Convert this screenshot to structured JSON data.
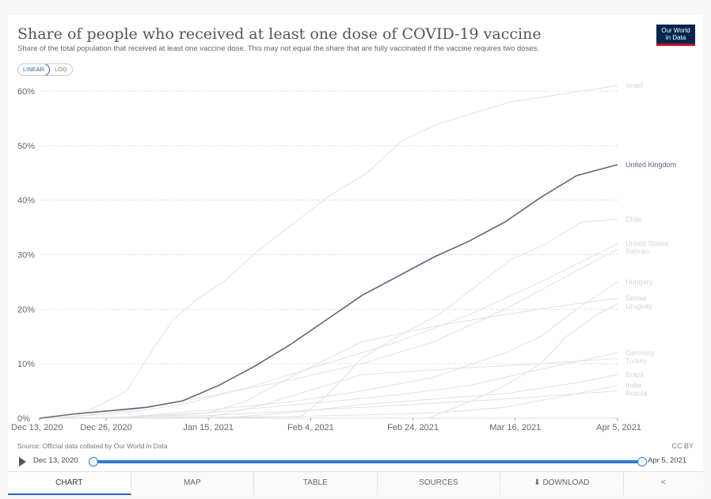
{
  "header": {
    "title": "Share of people who received at least one dose of COVID-19 vaccine",
    "subtitle": "Share of the total population that received at least one vaccine dose. This may not equal the share that are fully vaccinated if the vaccine requires two doses.",
    "logo_line1": "Our World",
    "logo_line2": "in Data"
  },
  "scale_toggle": {
    "linear": "LINEAR",
    "log": "LOG",
    "selected": "LINEAR"
  },
  "chart_data": {
    "type": "line",
    "title": "Share of people who received at least one dose of COVID-19 vaccine",
    "xlabel": "",
    "ylabel": "",
    "x_range": [
      "2020-12-13",
      "2021-04-05"
    ],
    "x_ticks": [
      "Dec 13, 2020",
      "Dec 26, 2020",
      "Jan 15, 2021",
      "Feb 4, 2021",
      "Feb 24, 2021",
      "Mar 16, 2021",
      "Apr 5, 2021"
    ],
    "ylim": [
      0,
      60
    ],
    "y_ticks": [
      "0%",
      "10%",
      "20%",
      "30%",
      "40%",
      "50%",
      "60%"
    ],
    "grid": true,
    "highlighted_series": "United Kingdom",
    "series": [
      {
        "name": "Israel",
        "highlight": false,
        "points": [
          [
            "2020-12-19",
            0
          ],
          [
            "2020-12-24",
            2
          ],
          [
            "2020-12-30",
            5
          ],
          [
            "2021-01-03",
            11
          ],
          [
            "2021-01-08",
            18
          ],
          [
            "2021-01-13",
            22
          ],
          [
            "2021-01-18",
            25
          ],
          [
            "2021-01-25",
            31
          ],
          [
            "2021-02-01",
            36
          ],
          [
            "2021-02-08",
            41
          ],
          [
            "2021-02-15",
            45
          ],
          [
            "2021-02-22",
            51
          ],
          [
            "2021-03-01",
            54
          ],
          [
            "2021-03-08",
            56
          ],
          [
            "2021-03-15",
            58
          ],
          [
            "2021-03-22",
            59
          ],
          [
            "2021-03-29",
            60
          ],
          [
            "2021-04-05",
            61
          ]
        ]
      },
      {
        "name": "United Kingdom",
        "highlight": true,
        "points": [
          [
            "2020-12-13",
            0
          ],
          [
            "2020-12-20",
            0.8
          ],
          [
            "2020-12-27",
            1.4
          ],
          [
            "2021-01-03",
            2
          ],
          [
            "2021-01-10",
            3.2
          ],
          [
            "2021-01-17",
            6
          ],
          [
            "2021-01-24",
            9.5
          ],
          [
            "2021-01-31",
            13.5
          ],
          [
            "2021-02-07",
            18
          ],
          [
            "2021-02-14",
            22.5
          ],
          [
            "2021-02-21",
            26
          ],
          [
            "2021-02-28",
            29.5
          ],
          [
            "2021-03-07",
            32.5
          ],
          [
            "2021-03-14",
            36
          ],
          [
            "2021-03-21",
            40.5
          ],
          [
            "2021-03-28",
            44.5
          ],
          [
            "2021-04-05",
            46.5
          ]
        ]
      },
      {
        "name": "Chile",
        "highlight": false,
        "points": [
          [
            "2020-12-24",
            0
          ],
          [
            "2021-01-15",
            0.2
          ],
          [
            "2021-02-02",
            0.3
          ],
          [
            "2021-02-07",
            4
          ],
          [
            "2021-02-14",
            11
          ],
          [
            "2021-02-21",
            15
          ],
          [
            "2021-03-01",
            19
          ],
          [
            "2021-03-08",
            24
          ],
          [
            "2021-03-15",
            29
          ],
          [
            "2021-03-22",
            32
          ],
          [
            "2021-03-29",
            36
          ],
          [
            "2021-04-05",
            36.5
          ]
        ]
      },
      {
        "name": "United States",
        "highlight": false,
        "points": [
          [
            "2020-12-14",
            0
          ],
          [
            "2020-12-28",
            0.8
          ],
          [
            "2021-01-10",
            2.5
          ],
          [
            "2021-01-24",
            6
          ],
          [
            "2021-02-07",
            10
          ],
          [
            "2021-02-21",
            14
          ],
          [
            "2021-03-07",
            19
          ],
          [
            "2021-03-21",
            25
          ],
          [
            "2021-04-05",
            32
          ]
        ]
      },
      {
        "name": "Bahrain",
        "highlight": false,
        "points": [
          [
            "2020-12-17",
            0
          ],
          [
            "2020-12-31",
            1.5
          ],
          [
            "2021-01-15",
            4
          ],
          [
            "2021-01-31",
            7
          ],
          [
            "2021-02-14",
            10
          ],
          [
            "2021-02-28",
            14
          ],
          [
            "2021-03-14",
            20
          ],
          [
            "2021-03-28",
            27
          ],
          [
            "2021-04-05",
            31
          ]
        ]
      },
      {
        "name": "Hungary",
        "highlight": false,
        "points": [
          [
            "2020-12-27",
            0
          ],
          [
            "2021-01-15",
            1.5
          ],
          [
            "2021-01-31",
            3
          ],
          [
            "2021-02-14",
            5
          ],
          [
            "2021-02-28",
            7.5
          ],
          [
            "2021-03-14",
            12
          ],
          [
            "2021-03-21",
            15
          ],
          [
            "2021-03-28",
            20
          ],
          [
            "2021-04-05",
            25
          ]
        ]
      },
      {
        "name": "Serbia",
        "highlight": false,
        "points": [
          [
            "2020-12-24",
            0
          ],
          [
            "2021-01-15",
            1
          ],
          [
            "2021-01-22",
            3
          ],
          [
            "2021-02-01",
            8
          ],
          [
            "2021-02-14",
            14
          ],
          [
            "2021-03-01",
            17
          ],
          [
            "2021-03-14",
            19
          ],
          [
            "2021-03-28",
            21
          ],
          [
            "2021-04-05",
            22
          ]
        ]
      },
      {
        "name": "Uruguay",
        "highlight": false,
        "points": [
          [
            "2021-02-27",
            0
          ],
          [
            "2021-03-07",
            3
          ],
          [
            "2021-03-14",
            6
          ],
          [
            "2021-03-21",
            10
          ],
          [
            "2021-03-26",
            15
          ],
          [
            "2021-04-01",
            19
          ],
          [
            "2021-04-05",
            21
          ]
        ]
      },
      {
        "name": "Germany",
        "highlight": false,
        "points": [
          [
            "2020-12-27",
            0
          ],
          [
            "2021-01-10",
            0.6
          ],
          [
            "2021-01-24",
            1.8
          ],
          [
            "2021-02-07",
            3
          ],
          [
            "2021-02-21",
            4.3
          ],
          [
            "2021-03-07",
            6
          ],
          [
            "2021-03-21",
            9
          ],
          [
            "2021-04-05",
            12
          ]
        ]
      },
      {
        "name": "Turkey",
        "highlight": false,
        "points": [
          [
            "2021-01-14",
            0
          ],
          [
            "2021-01-24",
            2
          ],
          [
            "2021-02-07",
            6
          ],
          [
            "2021-02-14",
            8
          ],
          [
            "2021-03-07",
            9.3
          ],
          [
            "2021-03-21",
            10
          ],
          [
            "2021-04-05",
            11
          ]
        ]
      },
      {
        "name": "Brazil",
        "highlight": false,
        "points": [
          [
            "2021-01-17",
            0
          ],
          [
            "2021-01-31",
            1
          ],
          [
            "2021-02-14",
            2.5
          ],
          [
            "2021-02-28",
            3.5
          ],
          [
            "2021-03-14",
            4.5
          ],
          [
            "2021-03-28",
            6.5
          ],
          [
            "2021-04-05",
            8
          ]
        ]
      },
      {
        "name": "India",
        "highlight": false,
        "points": [
          [
            "2021-01-16",
            0
          ],
          [
            "2021-01-31",
            0.3
          ],
          [
            "2021-02-14",
            0.6
          ],
          [
            "2021-03-01",
            1
          ],
          [
            "2021-03-14",
            2
          ],
          [
            "2021-03-28",
            4.5
          ],
          [
            "2021-04-05",
            6
          ]
        ]
      },
      {
        "name": "Russia",
        "highlight": false,
        "points": [
          [
            "2020-12-15",
            0
          ],
          [
            "2021-01-15",
            0.5
          ],
          [
            "2021-02-14",
            2
          ],
          [
            "2021-03-14",
            3.5
          ],
          [
            "2021-04-05",
            5
          ]
        ]
      }
    ],
    "colors": {
      "highlight": "#5b6780",
      "muted": "#e2e2e2",
      "label_muted": "#d4d4d4",
      "grid": "#dddddd",
      "axis_text": "#666666",
      "slider": "#2f7bd1"
    }
  },
  "footer": {
    "source": "Source: Official data collated by Our World in Data",
    "license": "CC BY"
  },
  "timeline": {
    "start_label": "Dec 13, 2020",
    "end_label": "Apr 5, 2021"
  },
  "tabs": [
    {
      "label": "CHART",
      "active": true
    },
    {
      "label": "MAP",
      "active": false
    },
    {
      "label": "TABLE",
      "active": false
    },
    {
      "label": "SOURCES",
      "active": false
    },
    {
      "label": "⬇ DOWNLOAD",
      "active": false
    },
    {
      "label": "<",
      "active": false
    }
  ]
}
